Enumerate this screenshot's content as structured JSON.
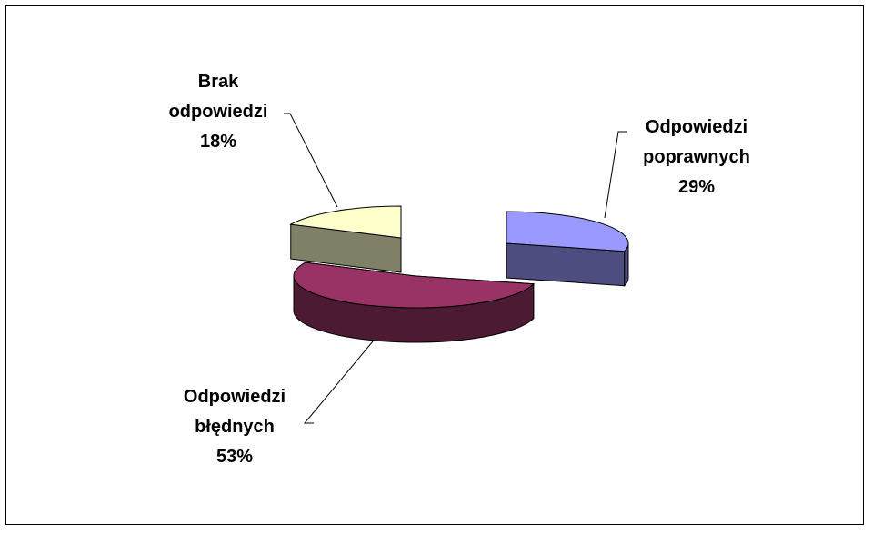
{
  "chart_data": {
    "type": "pie3d",
    "categories": [
      "Odpowiedzi poprawnych",
      "Odpowiedzi błędnych",
      "Brak odpowiedzi"
    ],
    "values": [
      29,
      53,
      18
    ],
    "value_labels": [
      "29%",
      "53%",
      "18%"
    ],
    "colors": [
      "#9999ff",
      "#993366",
      "#ffffcc"
    ]
  }
}
